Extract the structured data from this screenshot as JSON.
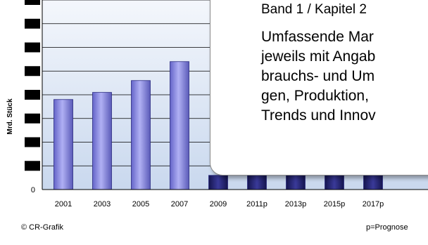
{
  "chart_data": {
    "type": "bar",
    "categories": [
      "2001",
      "2003",
      "2005",
      "2007",
      "2009",
      "2011p",
      "2013p",
      "2015p",
      "2017p"
    ],
    "values": [
      38,
      41,
      46,
      54,
      6,
      6,
      6,
      6,
      6
    ],
    "ylabel": "Mrd. Stück",
    "ylim": [
      0,
      80
    ],
    "y_tick_labels": [
      "0"
    ],
    "bar_color": "#8f8fe8",
    "bar_dark_color": "#1b1b6e",
    "background_color": "#dbe6f5",
    "grid": true
  },
  "popup": {
    "heading": "Band 1 / Kapitel 2",
    "lines": [
      "Umfassende Mar",
      "jeweils mit Angab",
      "brauchs- und Um",
      "gen, Produktion,",
      "Trends und Innov"
    ]
  },
  "footer": {
    "copyright": "© CR-Grafik",
    "note": "p=Prognose"
  }
}
